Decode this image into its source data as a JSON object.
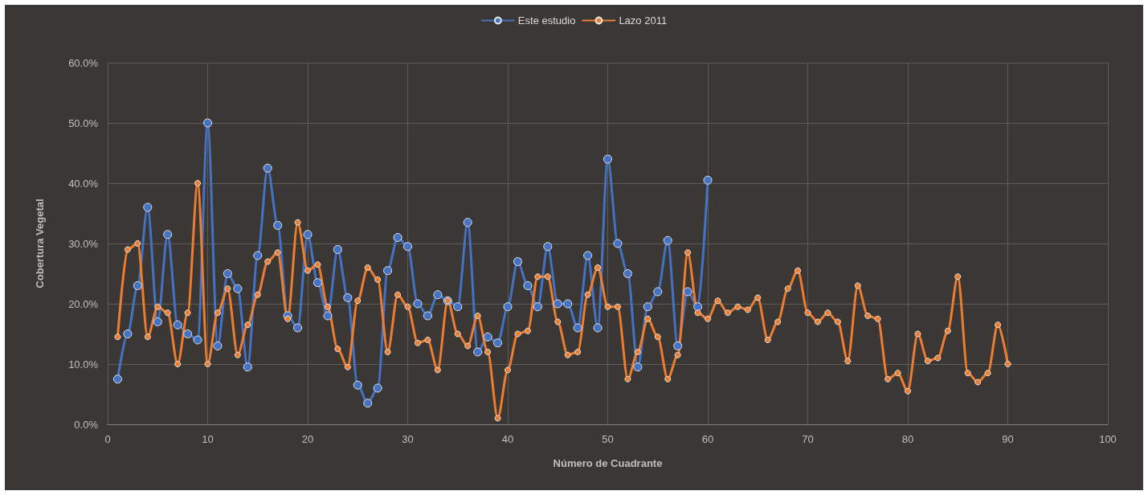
{
  "chart_data": {
    "type": "line",
    "xlabel": "Número de Cuadrante",
    "ylabel": "Cobertura Vegetal",
    "xlim": [
      0,
      100
    ],
    "xticks": [
      0,
      10,
      20,
      30,
      40,
      50,
      60,
      70,
      80,
      90,
      100
    ],
    "ylim": [
      0,
      60
    ],
    "yticks": [
      {
        "value": 0,
        "label": "0.0%"
      },
      {
        "value": 10,
        "label": "10.0%"
      },
      {
        "value": 20,
        "label": "20.0%"
      },
      {
        "value": 30,
        "label": "30.0%"
      },
      {
        "value": 40,
        "label": "40.0%"
      },
      {
        "value": 50,
        "label": "50.0%"
      },
      {
        "value": 60,
        "label": "60.0%"
      }
    ],
    "grid": true,
    "legend": "top",
    "marker": "circle",
    "line_style": "solid",
    "series": [
      {
        "name": "Este estudio",
        "color": "#4472c4",
        "x": [
          1,
          2,
          3,
          4,
          5,
          6,
          7,
          8,
          9,
          10,
          11,
          12,
          13,
          14,
          15,
          16,
          17,
          18,
          19,
          20,
          21,
          22,
          23,
          24,
          25,
          26,
          27,
          28,
          29,
          30,
          31,
          32,
          33,
          34,
          35,
          36,
          37,
          38,
          39,
          40,
          41,
          42,
          43,
          44,
          45,
          46,
          47,
          48,
          49,
          50,
          51,
          52,
          53,
          54,
          55,
          56,
          57,
          58,
          59,
          60
        ],
        "values": [
          7.5,
          15,
          23,
          36,
          17,
          31.5,
          16.5,
          15,
          14,
          50,
          13,
          25,
          22.5,
          9.5,
          28,
          42.5,
          33,
          18,
          16,
          31.5,
          23.5,
          18,
          29,
          21,
          6.5,
          3.5,
          6,
          25.5,
          31,
          29.5,
          20,
          18,
          21.5,
          20.5,
          19.5,
          33.5,
          12,
          14.5,
          13.5,
          19.5,
          27,
          23,
          19.5,
          29.5,
          20,
          20,
          16,
          28,
          16,
          44,
          30,
          25,
          9.5,
          19.5,
          22,
          30.5,
          13,
          22,
          19.5,
          40.5
        ]
      },
      {
        "name": "Lazo 2011",
        "color": "#ed7d31",
        "x": [
          1,
          2,
          3,
          4,
          5,
          6,
          7,
          8,
          9,
          10,
          11,
          12,
          13,
          14,
          15,
          16,
          17,
          18,
          19,
          20,
          21,
          22,
          23,
          24,
          25,
          26,
          27,
          28,
          29,
          30,
          31,
          32,
          33,
          34,
          35,
          36,
          37,
          38,
          39,
          40,
          41,
          42,
          43,
          44,
          45,
          46,
          47,
          48,
          49,
          50,
          51,
          52,
          53,
          54,
          55,
          56,
          57,
          58,
          59,
          60,
          61,
          62,
          63,
          64,
          65,
          66,
          67,
          68,
          69,
          70,
          71,
          72,
          73,
          74,
          75,
          76,
          77,
          78,
          79,
          80,
          81,
          82,
          83,
          84,
          85,
          86,
          87,
          88,
          89,
          90
        ],
        "values": [
          14.5,
          29,
          30,
          14.5,
          19.5,
          18.5,
          10,
          18.5,
          40,
          10,
          18.5,
          22.5,
          11.5,
          16.5,
          21.5,
          27,
          28.5,
          17.5,
          33.5,
          25.5,
          26.5,
          19.5,
          12.5,
          9.5,
          20.5,
          26,
          24,
          12,
          21.5,
          19.5,
          13.5,
          14,
          9,
          20.5,
          15,
          13,
          18,
          12,
          1,
          9,
          15,
          15.5,
          24.5,
          24.5,
          17,
          11.5,
          12,
          21.5,
          26,
          19.5,
          19.5,
          7.5,
          12,
          17.5,
          14.5,
          7.5,
          11.5,
          28.5,
          18.5,
          17.5,
          20.5,
          18.5,
          19.5,
          19,
          21,
          14,
          17,
          22.5,
          25.5,
          18.5,
          17,
          18.5,
          17,
          10.5,
          23,
          18,
          17.5,
          7.5,
          8.5,
          5.5,
          15,
          10.5,
          11,
          15.5,
          24.5,
          8.5,
          7,
          8.5,
          16.5,
          10
        ]
      }
    ]
  }
}
